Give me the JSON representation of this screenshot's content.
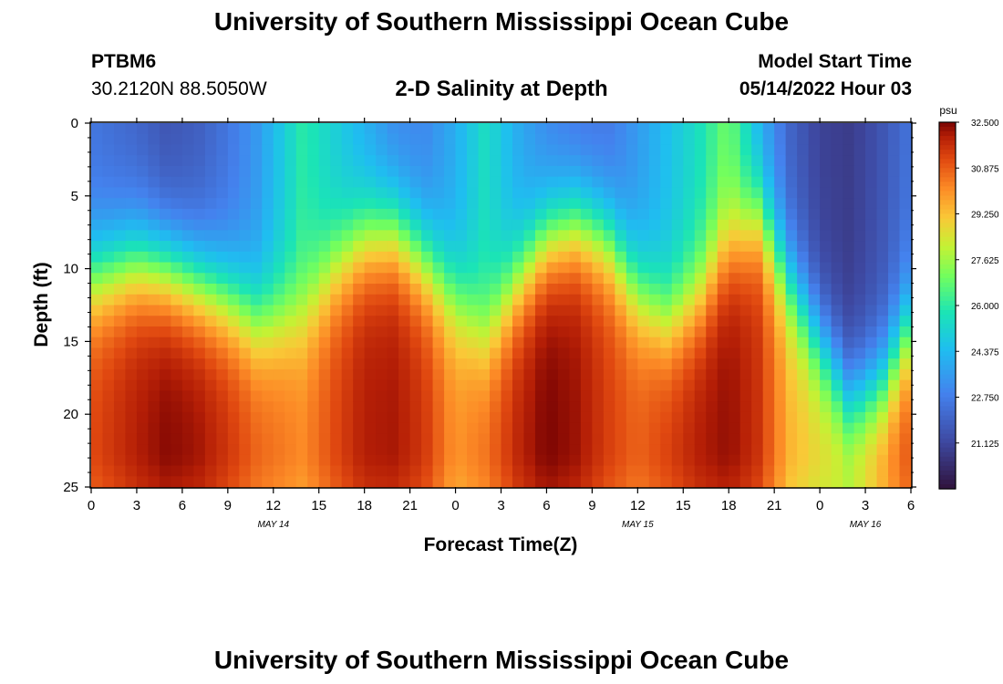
{
  "header": {
    "title": "University of Southern Mississippi Ocean Cube",
    "station": "PTBM6",
    "coords": "30.2120N  88.5050W",
    "chart_title": "2-D Salinity at Depth",
    "start_label": "Model Start Time",
    "start_value": "05/14/2022 Hour 03"
  },
  "footer": {
    "title": "University of Southern Mississippi Ocean Cube"
  },
  "chart_data": {
    "type": "heatmap",
    "title": "2-D Salinity at Depth",
    "xlabel": "Forecast Time(Z)",
    "ylabel": "Depth (ft)",
    "x_range_hours": [
      0,
      54
    ],
    "y_range_ft": [
      0,
      25
    ],
    "x_ticks": [
      "0",
      "3",
      "6",
      "9",
      "12",
      "15",
      "18",
      "21",
      "0",
      "3",
      "6",
      "9",
      "12",
      "15",
      "18",
      "21",
      "0",
      "3",
      "6"
    ],
    "y_ticks": [
      "0",
      "5",
      "10",
      "15",
      "20",
      "25"
    ],
    "y_tick_values": [
      0,
      5,
      10,
      15,
      20,
      25
    ],
    "date_labels": [
      {
        "label": "MAY 14",
        "hour": 12
      },
      {
        "label": "MAY 15",
        "hour": 36
      },
      {
        "label": "MAY 16",
        "hour": 51
      }
    ],
    "colorbar": {
      "unit": "psu",
      "min": 19.5,
      "max": 32.5,
      "tick_labels": [
        "32.500",
        "30.875",
        "29.250",
        "27.625",
        "26.000",
        "24.375",
        "22.750",
        "21.125"
      ],
      "tick_values": [
        32.5,
        30.875,
        29.25,
        27.625,
        26.0,
        24.375,
        22.75,
        21.125
      ]
    },
    "field_description": "Low salinity (~21-24 psu) near surface; tongue of high salinity (~31-32.5 psu) rises from bottom with ~12-14 h period, peaks near 5 h, 19 h, 31 h, 42 h and 54 h; near-surface upwelling of moderate salinity (~26-28 psu) around 14 h, 27 h and 40 h.",
    "profile_knots": {
      "hours": [
        0,
        3,
        5,
        7,
        9,
        11,
        14,
        16,
        18,
        20,
        22,
        24,
        26,
        28,
        30,
        32,
        34,
        36,
        38,
        40,
        42,
        44,
        46,
        48,
        50,
        52,
        54
      ],
      "interface_depth_ft": [
        10.5,
        9.5,
        10,
        11,
        12,
        13.5,
        13,
        10,
        8,
        7.5,
        9.5,
        12,
        14.5,
        11,
        8,
        7,
        8,
        11.5,
        13.5,
        12,
        8.5,
        6.5,
        11,
        15,
        19,
        18,
        14
      ],
      "bottom_salinity_psu": [
        31.2,
        32.0,
        32.4,
        32.2,
        31.6,
        30.8,
        30.2,
        31.2,
        32.0,
        32.1,
        31.5,
        30.0,
        30.6,
        31.8,
        32.5,
        32.2,
        31.4,
        30.8,
        31.4,
        32.0,
        32.3,
        31.6,
        29.5,
        28.8,
        28.6,
        30.0,
        31.2
      ],
      "surface_salinity_psu": [
        22.5,
        22.0,
        21.5,
        21.8,
        22.5,
        23.5,
        26.0,
        25.0,
        24.0,
        23.0,
        23.0,
        24.0,
        25.5,
        24.0,
        23.0,
        22.5,
        22.5,
        23.5,
        24.5,
        25.5,
        27.0,
        24.0,
        22.0,
        21.0,
        20.8,
        21.5,
        22.5
      ]
    }
  }
}
